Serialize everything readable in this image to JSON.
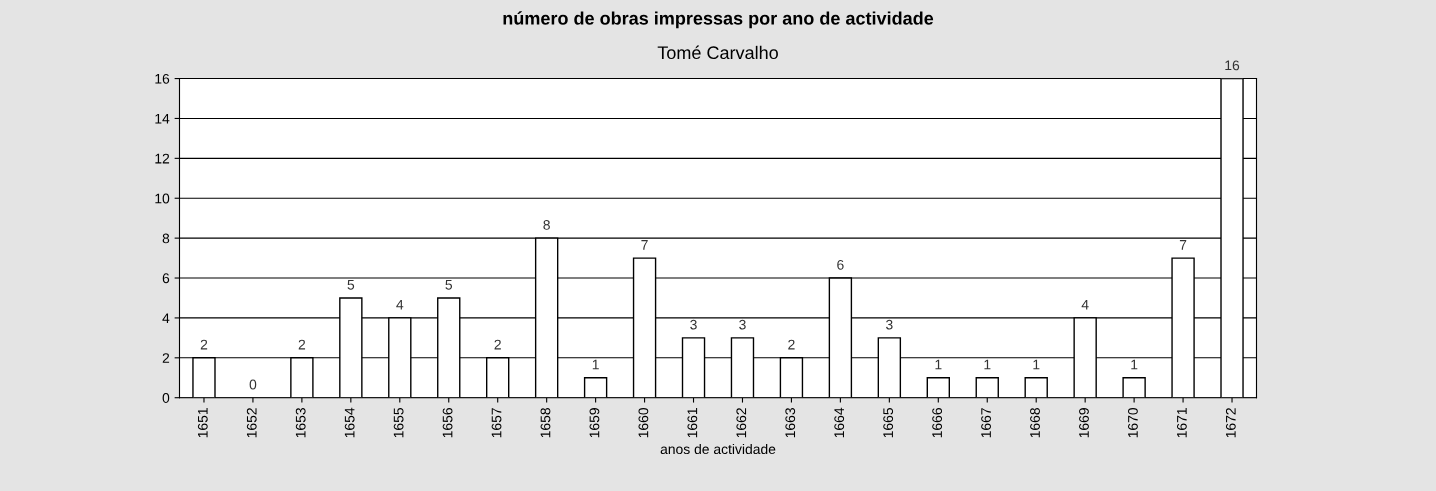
{
  "chart_data": {
    "type": "bar",
    "title": "número de obras impressas por ano de actividade",
    "subtitle": "Tomé Carvalho",
    "xlabel": "anos de actividade",
    "categories": [
      "1651",
      "1652",
      "1653",
      "1654",
      "1655",
      "1656",
      "1657",
      "1658",
      "1659",
      "1660",
      "1661",
      "1662",
      "1663",
      "1664",
      "1665",
      "1666",
      "1667",
      "1668",
      "1669",
      "1670",
      "1671",
      "1672"
    ],
    "values": [
      2,
      0,
      2,
      5,
      4,
      5,
      2,
      8,
      1,
      7,
      3,
      3,
      2,
      6,
      3,
      1,
      1,
      1,
      4,
      1,
      7,
      16
    ],
    "color": "#ffffff",
    "ylim": [
      0,
      16
    ],
    "yticks": [
      0,
      2,
      4,
      6,
      8,
      10,
      12,
      14,
      16
    ],
    "grid": "y",
    "data_labels": true
  }
}
